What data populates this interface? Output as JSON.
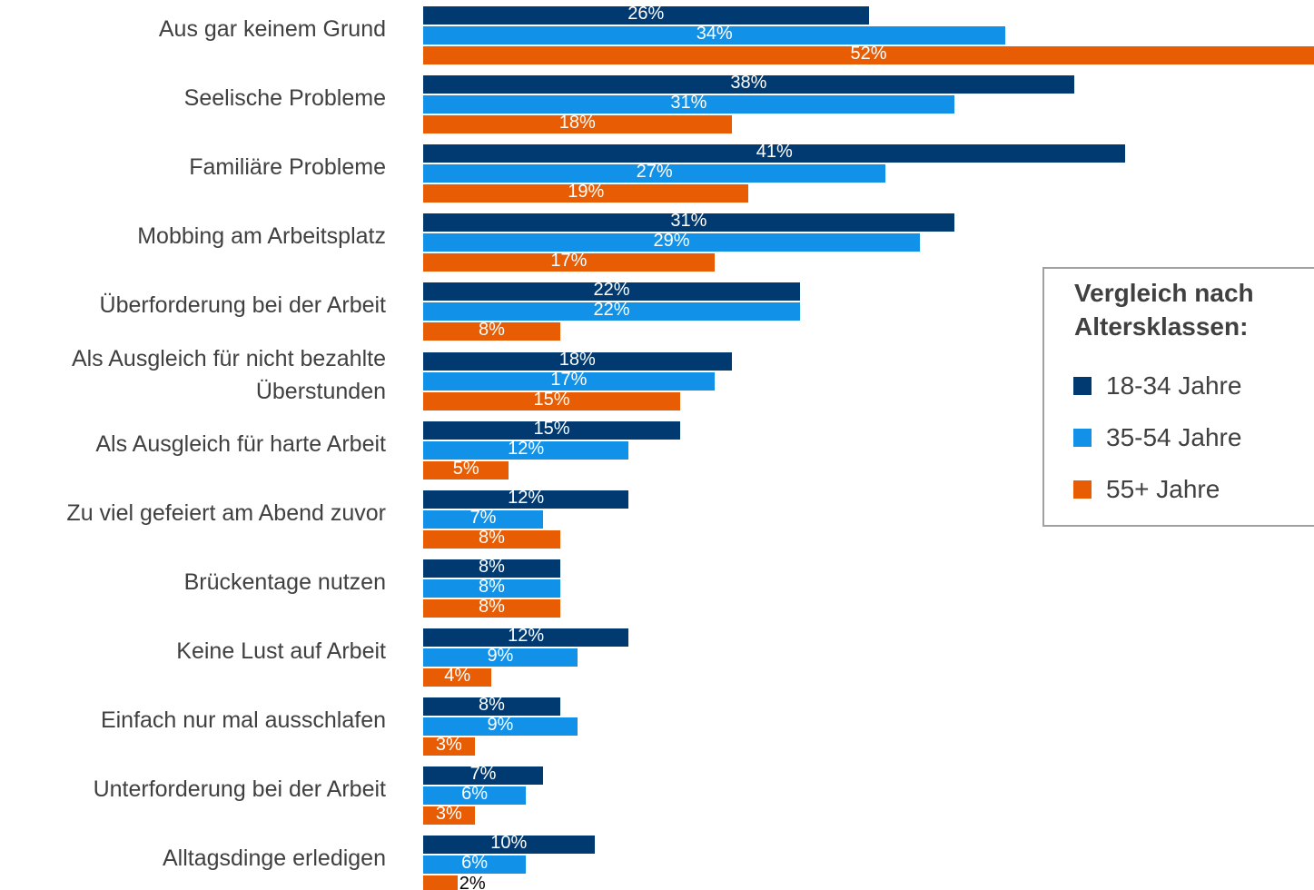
{
  "chart_data": {
    "type": "bar",
    "orientation": "horizontal",
    "categories": [
      "Aus gar keinem Grund",
      "Seelische Probleme",
      "Familiäre Probleme",
      "Mobbing am Arbeitsplatz",
      "Überforderung bei der Arbeit",
      "Als Ausgleich für nicht bezahlte\nÜberstunden",
      "Als Ausgleich für harte Arbeit",
      "Zu viel gefeiert am Abend zuvor",
      "Brückentage nutzen",
      "Keine Lust auf Arbeit",
      "Einfach nur mal ausschlafen",
      "Unterforderung bei der Arbeit",
      "Alltagsdinge erledigen"
    ],
    "series": [
      {
        "name": "18-34 Jahre",
        "color": "#003a70",
        "values": [
          26,
          38,
          41,
          31,
          22,
          18,
          15,
          12,
          8,
          12,
          8,
          7,
          10
        ],
        "value_labels": [
          "26%",
          "38%",
          "41%",
          "31%",
          "22%",
          "18%",
          "15%",
          "12%",
          "8%",
          "12%",
          "8%",
          "7%",
          "10%"
        ]
      },
      {
        "name": "35-54 Jahre",
        "color": "#1192e8",
        "values": [
          34,
          31,
          27,
          29,
          22,
          17,
          12,
          7,
          8,
          9,
          9,
          6,
          6
        ],
        "value_labels": [
          "34%",
          "31%",
          "27%",
          "29%",
          "22%",
          "17%",
          "12%",
          "7%",
          "8%",
          "9%",
          "9%",
          "6%",
          "6%"
        ]
      },
      {
        "name": "55+ Jahre",
        "color": "#e85d04",
        "values": [
          52,
          18,
          19,
          17,
          8,
          15,
          5,
          8,
          8,
          4,
          3,
          3,
          2
        ],
        "value_labels": [
          "52%",
          "18%",
          "19%",
          "17%",
          "8%",
          "15%",
          "5%",
          "8%",
          "8%",
          "4%",
          "3%",
          "3%",
          "2%"
        ]
      }
    ],
    "legend_title": "Vergleich nach\nAltersklassen:",
    "legend": "right"
  }
}
